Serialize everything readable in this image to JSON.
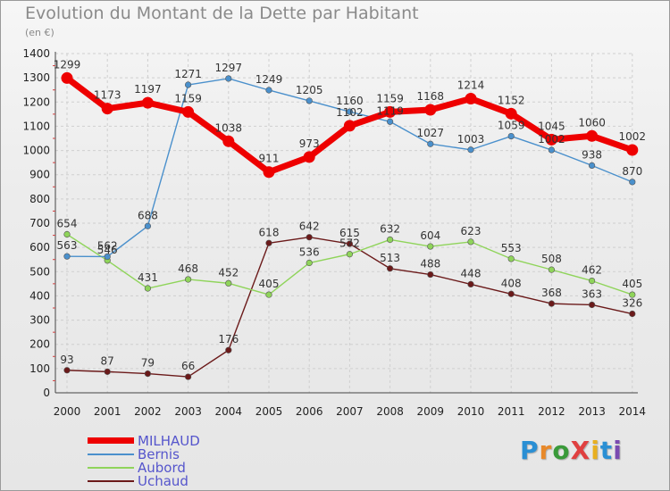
{
  "title": "Evolution du Montant de la Dette par Habitant",
  "unit": "(en €)",
  "logo": {
    "text": "ProXiti",
    "letter_colors": [
      "#2a8fd4",
      "#e8892a",
      "#3a9a3a",
      "#e04040",
      "#e8b020",
      "#2a8fd4",
      "#7a4ab0"
    ]
  },
  "chart_data": {
    "type": "line",
    "x": [
      "2000",
      "2001",
      "2002",
      "2003",
      "2004",
      "2005",
      "2006",
      "2007",
      "2008",
      "2009",
      "2010",
      "2011",
      "2012",
      "2013",
      "2014"
    ],
    "ylim": [
      0,
      1400
    ],
    "yticks": [
      0,
      100,
      200,
      300,
      400,
      500,
      600,
      700,
      800,
      900,
      1000,
      1100,
      1200,
      1300,
      1400
    ],
    "grid": true,
    "legend_position": "bottom-left",
    "series": [
      {
        "name": "MILHAUD",
        "color": "#ee0000",
        "values": [
          1299,
          1173,
          1197,
          1159,
          1038,
          911,
          973,
          1102,
          1159,
          1168,
          1214,
          1152,
          1045,
          1060,
          1002
        ],
        "labels": [
          "1299",
          "1173",
          "1197",
          "1159",
          "1038",
          "911",
          "973",
          "1102",
          "1159",
          "1168",
          "1214",
          "1152",
          "1045",
          "1060",
          "1002"
        ]
      },
      {
        "name": "Bernis",
        "color": "#4a90cc",
        "values": [
          563,
          562,
          688,
          1271,
          1297,
          1249,
          1205,
          1160,
          1119,
          1027,
          1003,
          1059,
          1002,
          938,
          870
        ],
        "labels": [
          "563",
          "562",
          "688",
          "1271",
          "1297",
          "1249",
          "1205",
          "1160",
          "1119",
          "1027",
          "1003",
          "1059",
          "1002",
          "938",
          "870"
        ]
      },
      {
        "name": "Aubord",
        "color": "#8fd45a",
        "values": [
          654,
          546,
          431,
          468,
          452,
          405,
          536,
          572,
          632,
          604,
          623,
          553,
          508,
          462,
          405
        ],
        "labels": [
          "654",
          "546",
          "431",
          "468",
          "452",
          "405",
          "536",
          "572",
          "632",
          "604",
          "623",
          "553",
          "508",
          "462",
          "405"
        ]
      },
      {
        "name": "Uchaud",
        "color": "#6b1a1a",
        "values": [
          93,
          87,
          79,
          66,
          176,
          618,
          642,
          615,
          513,
          488,
          448,
          408,
          368,
          363,
          326
        ],
        "labels": [
          "93",
          "87",
          "79",
          "66",
          "176",
          "618",
          "642",
          "615",
          "513",
          "488",
          "448",
          "408",
          "368",
          "363",
          "326"
        ]
      }
    ]
  }
}
